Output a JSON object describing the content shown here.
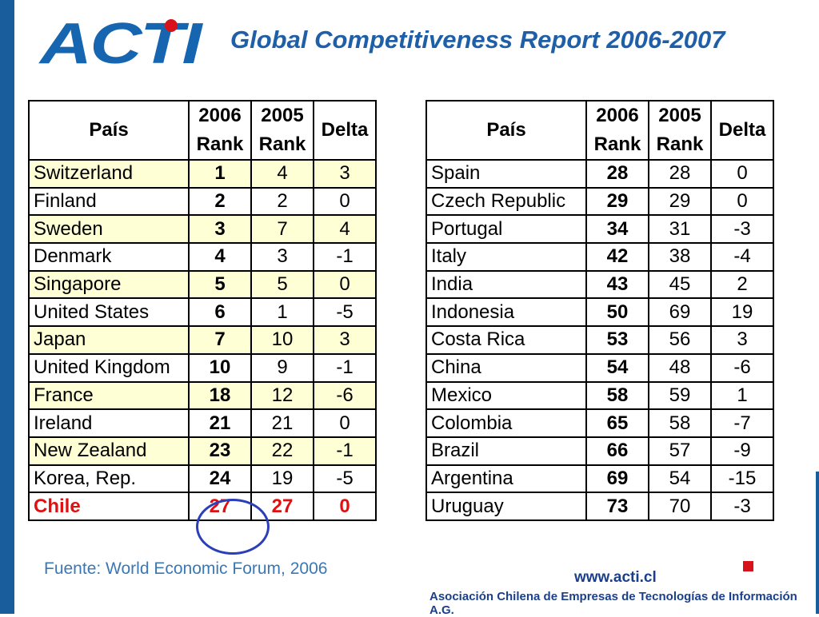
{
  "logo": "ACTI",
  "header": {
    "title": "Global Competitiveness Report 2006-2007"
  },
  "tables": [
    {
      "columns": [
        "País",
        "2006 Rank",
        "2005 Rank",
        "Delta"
      ],
      "rows": [
        [
          "Switzerland",
          1,
          4,
          3
        ],
        [
          "Finland",
          2,
          2,
          0
        ],
        [
          "Sweden",
          3,
          7,
          4
        ],
        [
          "Denmark",
          4,
          3,
          -1
        ],
        [
          "Singapore",
          5,
          5,
          0
        ],
        [
          "United States",
          6,
          1,
          -5
        ],
        [
          "Japan",
          7,
          10,
          3
        ],
        [
          "United Kingdom",
          10,
          9,
          -1
        ],
        [
          "France",
          18,
          12,
          -6
        ],
        [
          "Ireland",
          21,
          21,
          0
        ],
        [
          "New Zealand",
          23,
          22,
          -1
        ],
        [
          "Korea, Rep.",
          24,
          19,
          -5
        ],
        [
          "Chile",
          27,
          27,
          0
        ]
      ]
    },
    {
      "columns": [
        "País",
        "2006 Rank",
        "2005 Rank",
        "Delta"
      ],
      "rows": [
        [
          "Spain",
          28,
          28,
          0
        ],
        [
          "Czech Republic",
          29,
          29,
          0
        ],
        [
          "Portugal",
          34,
          31,
          -3
        ],
        [
          "Italy",
          42,
          38,
          -4
        ],
        [
          "India",
          43,
          45,
          2
        ],
        [
          "Indonesia",
          50,
          69,
          19
        ],
        [
          "Costa Rica",
          53,
          56,
          3
        ],
        [
          "China",
          54,
          48,
          -6
        ],
        [
          "Mexico",
          58,
          59,
          1
        ],
        [
          "Colombia",
          65,
          58,
          -7
        ],
        [
          "Brazil",
          66,
          57,
          -9
        ],
        [
          "Argentina",
          69,
          54,
          -15
        ],
        [
          "Uruguay",
          73,
          70,
          -3
        ]
      ]
    }
  ],
  "footer": {
    "source": "Fuente: World Economic Forum, 2006",
    "url": "www.acti.cl",
    "organization": "Asociación Chilena de Empresas de Tecnologías de Información A.G."
  }
}
